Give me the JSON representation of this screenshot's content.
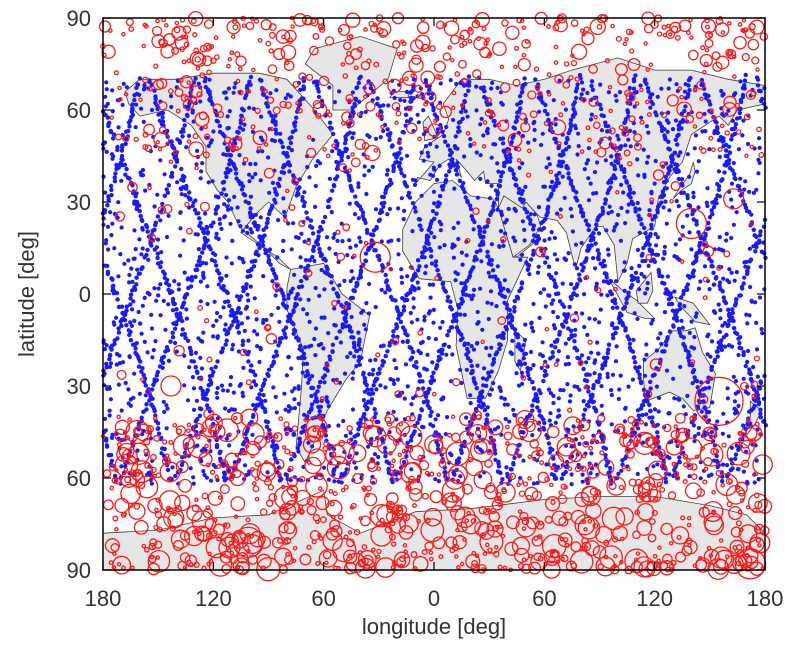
{
  "chart_data": {
    "type": "scatter",
    "title": "",
    "xlabel": "longitude [deg]",
    "ylabel": "latitude [deg]",
    "xlim": [
      -180,
      180
    ],
    "ylim": [
      -90,
      90
    ],
    "xticks": [
      -180,
      -120,
      -60,
      0,
      60,
      120,
      180
    ],
    "xtick_labels": [
      "180",
      "120",
      "60",
      "0",
      "60",
      "120",
      "180"
    ],
    "yticks": [
      -90,
      -60,
      -30,
      0,
      30,
      60,
      90
    ],
    "ytick_labels": [
      "90",
      "60",
      "30",
      "0",
      "30",
      "60",
      "90"
    ],
    "grid": false,
    "legend": "none",
    "background_map": "world coastlines, land shaded light gray",
    "colors": {
      "land": "#e6e6e6",
      "coast": "#404040",
      "ocean": "#ffffff",
      "frame": "#000000"
    },
    "series": [
      {
        "marker": "filled dot",
        "color": "#1a1aff",
        "description_of_distribution": "dense over the globe between about 60S and 70N, along satellite ground tracks",
        "seed_tracks": [
          {
            "lon0": -170,
            "lat0": -60,
            "dir": 1
          },
          {
            "lon0": -140,
            "lat0": -60,
            "dir": 1
          },
          {
            "lon0": -110,
            "lat0": -60,
            "dir": 1
          },
          {
            "lon0": -80,
            "lat0": -60,
            "dir": 1
          },
          {
            "lon0": -50,
            "lat0": -60,
            "dir": 1
          },
          {
            "lon0": -20,
            "lat0": -60,
            "dir": 1
          },
          {
            "lon0": 10,
            "lat0": -60,
            "dir": 1
          },
          {
            "lon0": 40,
            "lat0": -60,
            "dir": 1
          },
          {
            "lon0": 70,
            "lat0": -60,
            "dir": 1
          },
          {
            "lon0": 100,
            "lat0": -60,
            "dir": 1
          },
          {
            "lon0": 130,
            "lat0": -60,
            "dir": 1
          },
          {
            "lon0": 160,
            "lat0": -60,
            "dir": 1
          },
          {
            "lon0": -155,
            "lat0": 70,
            "dir": -1
          },
          {
            "lon0": -125,
            "lat0": 70,
            "dir": -1
          },
          {
            "lon0": -95,
            "lat0": 70,
            "dir": -1
          },
          {
            "lon0": -65,
            "lat0": 70,
            "dir": -1
          },
          {
            "lon0": -35,
            "lat0": 70,
            "dir": -1
          },
          {
            "lon0": -5,
            "lat0": 70,
            "dir": -1
          },
          {
            "lon0": 25,
            "lat0": 70,
            "dir": -1
          },
          {
            "lon0": 55,
            "lat0": 70,
            "dir": -1
          },
          {
            "lon0": 85,
            "lat0": 70,
            "dir": -1
          },
          {
            "lon0": 115,
            "lat0": 70,
            "dir": -1
          },
          {
            "lon0": 145,
            "lat0": 70,
            "dir": -1
          },
          {
            "lon0": 175,
            "lat0": 70,
            "dir": -1
          }
        ]
      },
      {
        "marker": "open circle (size varies)",
        "color": "#ff1a1a",
        "description_of_distribution": "concentrated at high latitudes (above ~50N and below ~40S), sparse at low latitudes",
        "notable_large_circles": [
          {
            "lon": 155,
            "lat": -35,
            "size": "large"
          },
          {
            "lon": -32,
            "lat": 12,
            "size": "medium"
          },
          {
            "lon": 140,
            "lat": 23,
            "size": "medium"
          },
          {
            "lon": 163,
            "lat": 31,
            "size": "small"
          },
          {
            "lon": -143,
            "lat": -30,
            "size": "small"
          },
          {
            "lon": -101,
            "lat": -81,
            "size": "medium"
          },
          {
            "lon": 172,
            "lat": -88,
            "size": "medium"
          }
        ]
      }
    ]
  }
}
